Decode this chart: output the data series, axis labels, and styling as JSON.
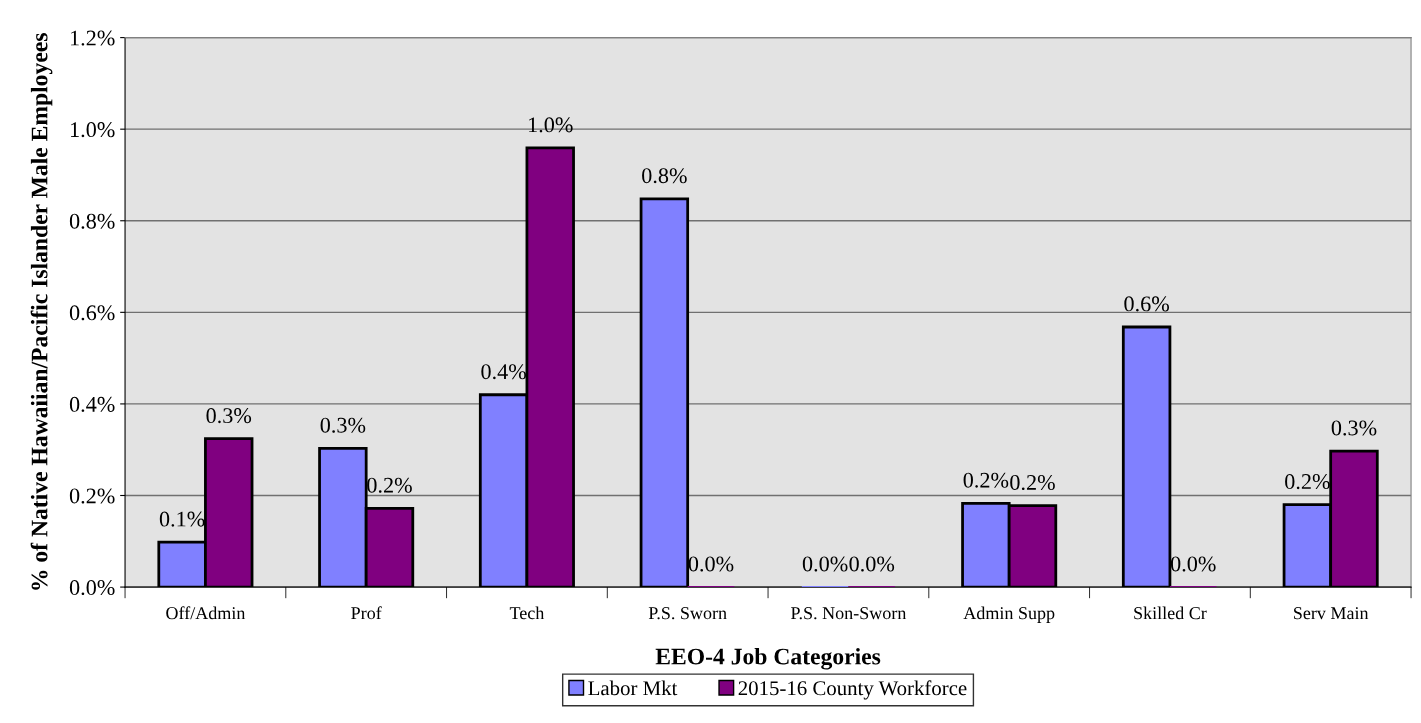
{
  "chart_data": {
    "type": "bar",
    "xlabel": "EEO-4 Job Categories",
    "ylabel": "% of Native Hawaiian/Pacific Islander Male Employees",
    "categories": [
      "Off/Admin",
      "Prof",
      "Tech",
      "P.S. Sworn",
      "P.S. Non-Sworn",
      "Admin Supp",
      "Skilled Cr",
      "Serv Main"
    ],
    "series": [
      {
        "name": "Labor Mkt",
        "color": "#8080ff",
        "values": [
          0.098,
          0.303,
          0.42,
          0.848,
          0,
          0.183,
          0.568,
          0.18
        ],
        "value_labels": [
          "0.1%",
          "0.3%",
          "0.4%",
          "0.8%",
          "0.0%",
          "0.2%",
          "0.6%",
          "0.2%"
        ]
      },
      {
        "name": "2015-16 County Workforce",
        "color": "#800080",
        "values": [
          0.324,
          0.172,
          0.959,
          0,
          0,
          0.178,
          0,
          0.297
        ],
        "value_labels": [
          "0.3%",
          "0.2%",
          "1.0%",
          "0.0%",
          "0.0%",
          "0.2%",
          "0.0%",
          "0.3%"
        ]
      }
    ],
    "ylim": [
      0,
      1.2
    ],
    "yticks": [
      {
        "value": 0,
        "label": "0.0%"
      },
      {
        "value": 0.2,
        "label": "0.2%"
      },
      {
        "value": 0.4,
        "label": "0.4%"
      },
      {
        "value": 0.6,
        "label": "0.6%"
      },
      {
        "value": 0.8,
        "label": "0.8%"
      },
      {
        "value": 1.0,
        "label": "1.0%"
      },
      {
        "value": 1.2,
        "label": "1.2%"
      }
    ],
    "grid": "y",
    "legend": "bottom"
  }
}
